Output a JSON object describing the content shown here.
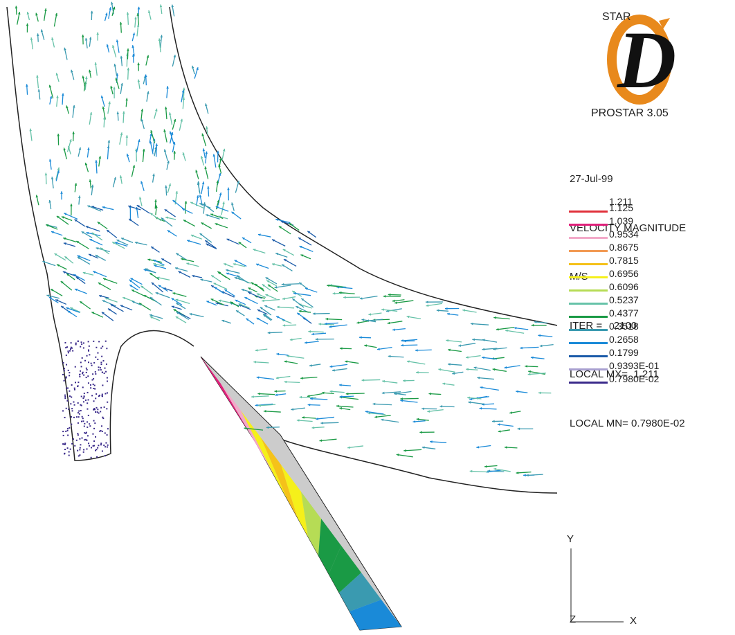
{
  "logo": {
    "brand_text": "STAR",
    "brand_letter": "D",
    "version": "PROSTAR 3.05",
    "accent_color": "#e8891c"
  },
  "info": {
    "date": "27-Jul-99",
    "quantity": "VELOCITY MAGNITUDE",
    "units": "M/S",
    "iteration": "ITER =    2100",
    "local_max": "LOCAL MX=  1.211",
    "local_min": "LOCAL MN= 0.7980E-02"
  },
  "chart_data": {
    "type": "vector-field",
    "title": "",
    "quantity": "VELOCITY MAGNITUDE",
    "units": "M/S",
    "iteration": 2100,
    "local_max": 1.211,
    "local_min": 0.00798,
    "legend_max_label": "1.211",
    "legend": [
      {
        "label": "1.125",
        "color": "#e0303a"
      },
      {
        "label": "1.039",
        "color": "#e0207a"
      },
      {
        "label": "0.9534",
        "color": "#f2a8c8"
      },
      {
        "label": "0.8675",
        "color": "#f29a55"
      },
      {
        "label": "0.7815",
        "color": "#f5c21a"
      },
      {
        "label": "0.6956",
        "color": "#f5f01a"
      },
      {
        "label": "0.6096",
        "color": "#b6dc55"
      },
      {
        "label": "0.5237",
        "color": "#66c2a8"
      },
      {
        "label": "0.4377",
        "color": "#1a9a45"
      },
      {
        "label": "0.3518",
        "color": "#3a9ab0"
      },
      {
        "label": "0.2658",
        "color": "#1a8ad8"
      },
      {
        "label": "0.1799",
        "color": "#1a5aa8"
      },
      {
        "label": "0.9393E-01",
        "color": "#a8a0d0"
      },
      {
        "label": "0.7980E-02",
        "color": "#3a2a8a"
      }
    ],
    "axes": {
      "y": "Y",
      "z": "Z",
      "x": "X"
    }
  }
}
